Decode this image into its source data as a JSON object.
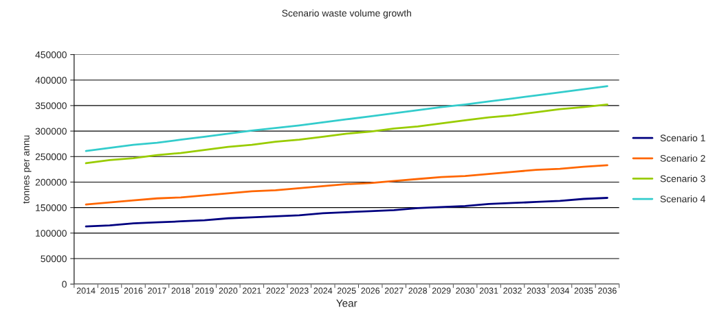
{
  "chart_data": {
    "type": "line",
    "title": "Scenario waste volume growth",
    "xlabel": "Year",
    "ylabel": "tonnes per annu",
    "categories": [
      "2014",
      "2015",
      "2016",
      "2017",
      "2018",
      "2019",
      "2020",
      "2021",
      "2022",
      "2023",
      "2024",
      "2025",
      "2026",
      "2027",
      "2028",
      "2029",
      "2030",
      "2031",
      "2032",
      "2033",
      "2034",
      "2035",
      "2036"
    ],
    "series": [
      {
        "name": "Scenario 1",
        "color": "#000080",
        "values": [
          113000,
          115000,
          119000,
          121000,
          123000,
          125000,
          129000,
          131000,
          133000,
          135000,
          139000,
          141000,
          143000,
          145000,
          149000,
          151000,
          153000,
          157000,
          159000,
          161000,
          163000,
          167000,
          169000
        ]
      },
      {
        "name": "Scenario 2",
        "color": "#ff6600",
        "values": [
          156000,
          160000,
          164000,
          168000,
          170000,
          174000,
          178000,
          182000,
          184000,
          188000,
          192000,
          196000,
          198000,
          202000,
          206000,
          210000,
          212000,
          216000,
          220000,
          224000,
          226000,
          230000,
          233000
        ]
      },
      {
        "name": "Scenario 3",
        "color": "#99cc00",
        "values": [
          237000,
          243000,
          247000,
          253000,
          257000,
          263000,
          269000,
          273000,
          279000,
          283000,
          289000,
          295000,
          299000,
          305000,
          309000,
          315000,
          321000,
          327000,
          331000,
          337000,
          343000,
          347000,
          352000
        ]
      },
      {
        "name": "Scenario 4",
        "color": "#33cccc",
        "values": [
          261000,
          267000,
          273000,
          277000,
          283000,
          289000,
          295000,
          301000,
          306000,
          311000,
          317000,
          323000,
          329000,
          335000,
          341000,
          347000,
          352000,
          358000,
          364000,
          370000,
          376000,
          382000,
          388000
        ]
      }
    ],
    "ylim": [
      0,
      450000
    ],
    "yticks": [
      0,
      50000,
      100000,
      150000,
      200000,
      250000,
      300000,
      350000,
      400000,
      450000
    ],
    "grid": "y",
    "legend": "right",
    "marker": "none",
    "line_style": "solid"
  }
}
